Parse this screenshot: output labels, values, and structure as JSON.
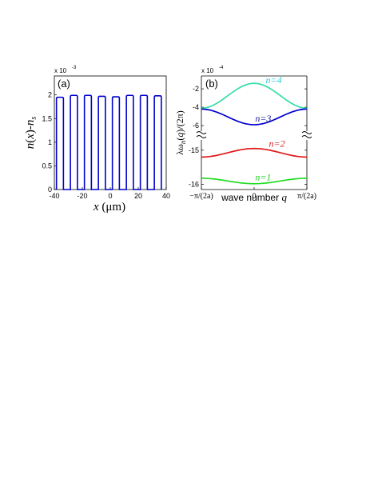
{
  "chart_data": [
    {
      "panel": "(a)",
      "type": "line",
      "xlabel": "x (μm)",
      "ylabel": "n(x)-n_s",
      "exponent_label": "x 10",
      "exponent_power": "-3",
      "xlim": [
        -40,
        40
      ],
      "ylim": [
        0,
        2.4
      ],
      "xticks": [
        -40,
        -20,
        0,
        20,
        40
      ],
      "yticks": [
        0,
        0.5,
        1,
        1.5,
        2
      ],
      "color": "#0000cc",
      "series": [
        {
          "profile": "square wave of plateaus separated by narrow gaps (value 0)",
          "plateaus": [
            {
              "x_start": -38.5,
              "x_end": -33.5,
              "value": 1.95
            },
            {
              "x_start": -28.5,
              "x_end": -23.5,
              "value": 1.99
            },
            {
              "x_start": -18.5,
              "x_end": -13.5,
              "value": 1.99
            },
            {
              "x_start": -8.5,
              "x_end": -3.5,
              "value": 1.97
            },
            {
              "x_start": 1.5,
              "x_end": 6.5,
              "value": 1.96
            },
            {
              "x_start": 11.5,
              "x_end": 16.5,
              "value": 1.99
            },
            {
              "x_start": 21.5,
              "x_end": 26.5,
              "value": 1.99
            },
            {
              "x_start": 31.5,
              "x_end": 36.5,
              "value": 1.98
            }
          ]
        }
      ]
    },
    {
      "panel": "(b)",
      "type": "line",
      "xlabel": "wave number q",
      "ylabel": "λω_n(q)/(2π)",
      "exponent_label": "x 10",
      "exponent_power": "-4",
      "xticks": [
        "−π/(2a)",
        "0",
        "π/(2a)"
      ],
      "x_domain": [
        -1,
        1
      ],
      "axis_break": true,
      "upper_segment": {
        "ylim": [
          -6.6,
          -0.6
        ],
        "yticks": [
          -2,
          -4,
          -6
        ]
      },
      "lower_segment": {
        "ylim": [
          -16.15,
          -14.7
        ],
        "yticks": [
          -15,
          -16
        ]
      },
      "series": [
        {
          "name": "n=4",
          "color": "#33ddaa",
          "label_color": "#22ccdd",
          "q": [
            -1,
            0,
            1
          ],
          "values": [
            -4.1,
            -1.4,
            -4.1
          ],
          "segment": "upper"
        },
        {
          "name": "n=3",
          "color": "#0000cc",
          "label_color": "#1a1aaa",
          "q": [
            -1,
            0,
            1
          ],
          "values": [
            -4.2,
            -5.9,
            -4.2
          ],
          "segment": "upper"
        },
        {
          "name": "n=2",
          "color": "#e01818",
          "label_color": "#e01818",
          "q": [
            -1,
            0,
            1
          ],
          "values": [
            -15.2,
            -14.95,
            -15.2
          ],
          "segment": "lower"
        },
        {
          "name": "n=1",
          "color": "#22dd22",
          "label_color": "#22cc22",
          "q": [
            -1,
            0,
            1
          ],
          "values": [
            -15.82,
            -15.98,
            -15.82
          ],
          "segment": "lower"
        }
      ]
    }
  ]
}
